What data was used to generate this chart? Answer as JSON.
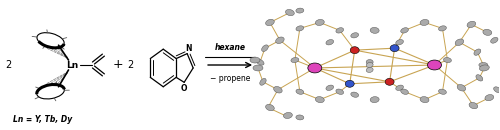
{
  "fig_width": 5.0,
  "fig_height": 1.3,
  "dpi": 100,
  "bg_color": "#ffffff",
  "arrow_above_text": "hexane",
  "arrow_below_text": "− propene",
  "label_text": "Ln = Y, Tb, Dy",
  "magenta_color": "#dd44bb",
  "red_color": "#cc2222",
  "blue_color": "#3355cc",
  "bond_color": "#c8a452",
  "gray_atom_color": "#aaaaaa",
  "gray_atom_edge": "#555555",
  "black": "#111111"
}
